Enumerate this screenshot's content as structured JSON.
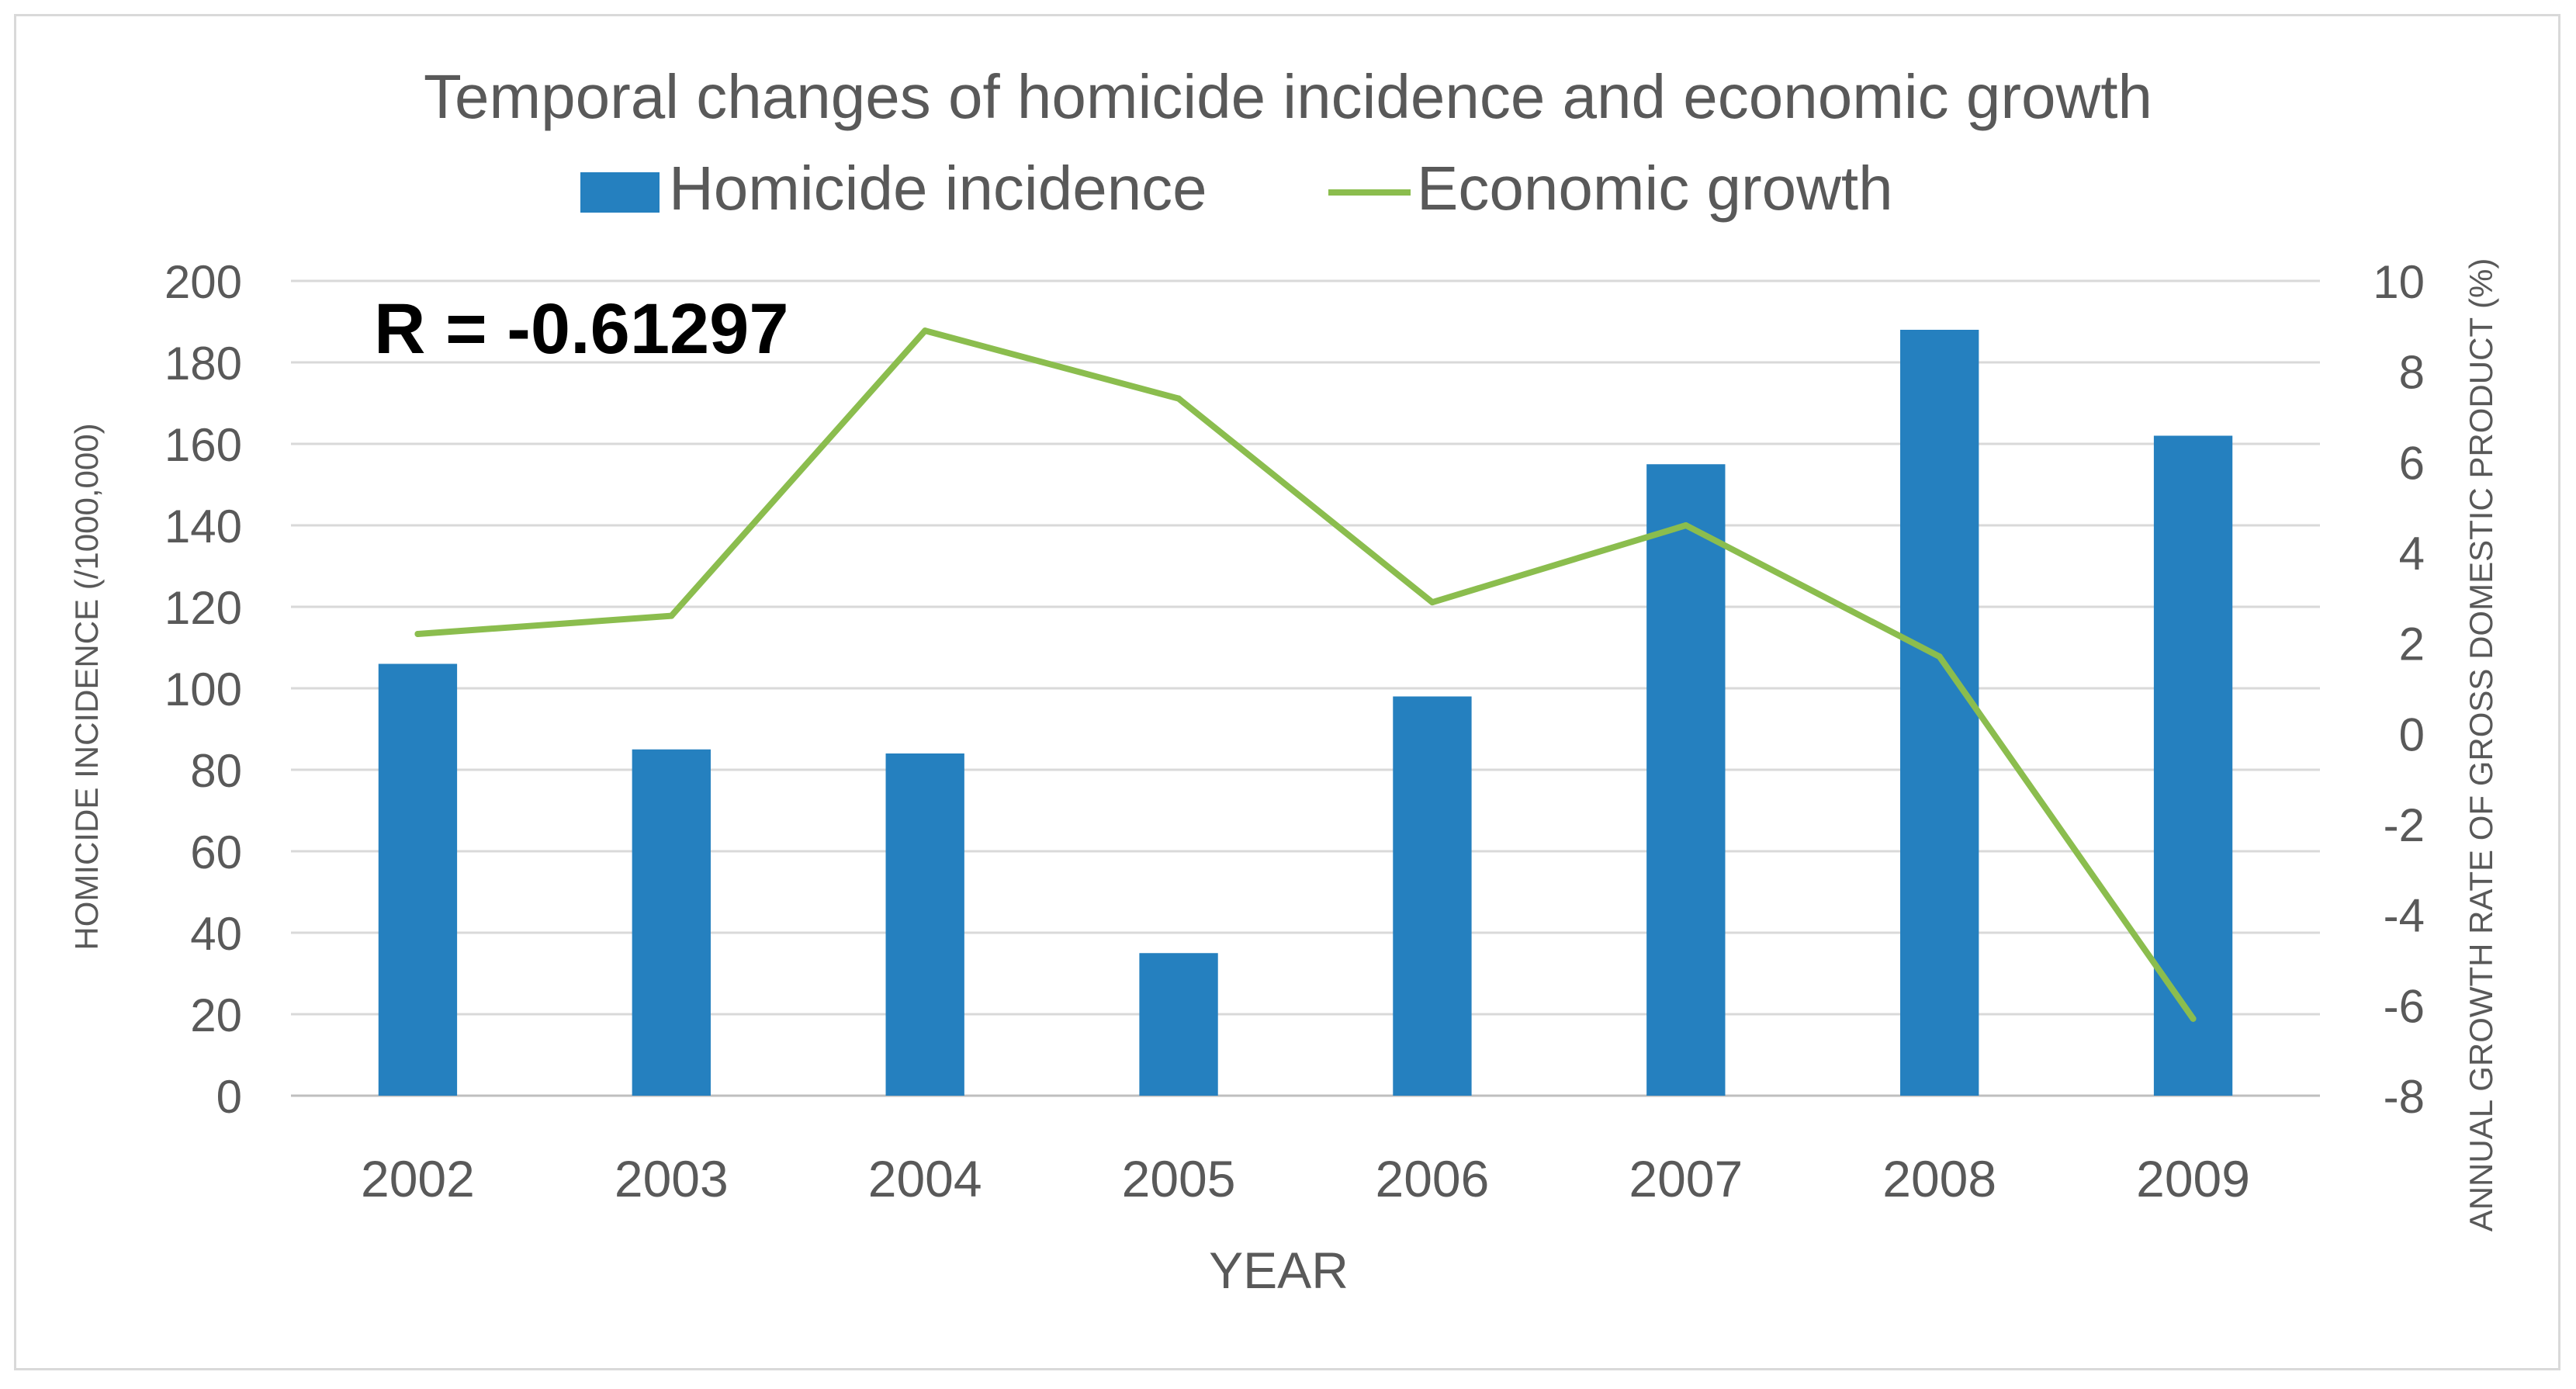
{
  "chart_data": {
    "type": "bar",
    "title": "Temporal changes of homicide incidence and economic growth",
    "annotation": "R = -0.61297",
    "xlabel": "YEAR",
    "ylabel": "HOMICIDE INCIDENCE (/1000,000)",
    "y2label": "ANNUAL GROWTH RATE OF GROSS DOMESTIC PRODUCT  (%)",
    "categories": [
      "2002",
      "2003",
      "2004",
      "2005",
      "2006",
      "2007",
      "2008",
      "2009"
    ],
    "ylim": [
      0,
      200
    ],
    "y_ticks": [
      "0",
      "20",
      "40",
      "60",
      "80",
      "100",
      "120",
      "140",
      "160",
      "180",
      "200"
    ],
    "y2lim": [
      -8,
      10
    ],
    "y2_ticks": [
      "-8",
      "-6",
      "-4",
      "-2",
      "0",
      "2",
      "4",
      "6",
      "8",
      "10"
    ],
    "grid": true,
    "legend_position": "top",
    "series": [
      {
        "name": "Homicide incidence",
        "type": "bar",
        "axis": "left",
        "color": "#2580bf",
        "values": [
          106,
          85,
          84,
          35,
          98,
          155,
          188,
          162
        ]
      },
      {
        "name": "Economic growth",
        "type": "line",
        "axis": "right",
        "color": "#8bbd4e",
        "values": [
          2.2,
          2.6,
          8.9,
          7.4,
          2.9,
          4.6,
          1.7,
          -6.3
        ]
      }
    ]
  }
}
